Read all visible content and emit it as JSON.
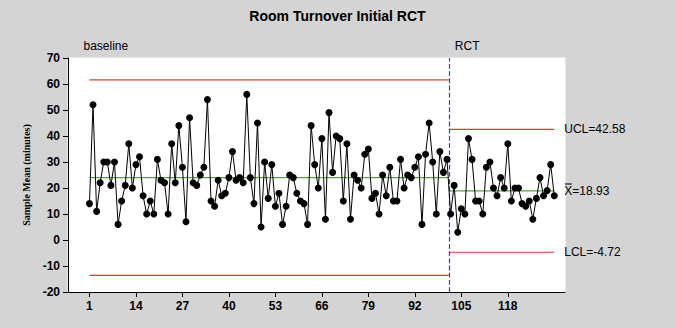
{
  "chart_data": {
    "type": "line",
    "title": "Room Turnover Initial RCT",
    "ylabel": "Sample Mean (minutes)",
    "x": [
      1,
      2,
      3,
      4,
      5,
      6,
      7,
      8,
      9,
      10,
      11,
      12,
      13,
      14,
      15,
      16,
      17,
      18,
      19,
      20,
      21,
      22,
      23,
      24,
      25,
      26,
      27,
      28,
      29,
      30,
      31,
      32,
      33,
      34,
      35,
      36,
      37,
      38,
      39,
      40,
      41,
      42,
      43,
      44,
      45,
      46,
      47,
      48,
      49,
      50,
      51,
      52,
      53,
      54,
      55,
      56,
      57,
      58,
      59,
      60,
      61,
      62,
      63,
      64,
      65,
      66,
      67,
      68,
      69,
      70,
      71,
      72,
      73,
      74,
      75,
      76,
      77,
      78,
      79,
      80,
      81,
      82,
      83,
      84,
      85,
      86,
      87,
      88,
      89,
      90,
      91,
      92,
      93,
      94,
      95,
      96,
      97,
      98,
      99,
      100,
      101,
      102,
      103,
      104,
      105,
      106,
      107,
      108,
      109,
      110,
      111,
      112,
      113,
      114,
      115,
      116,
      117,
      118,
      119,
      120,
      121,
      122,
      123,
      124,
      125,
      126,
      127,
      128,
      129,
      130,
      131
    ],
    "values": [
      14,
      52,
      11,
      22,
      30,
      30,
      21,
      30,
      6,
      15,
      21,
      37,
      20,
      29,
      32,
      17,
      10,
      15,
      10,
      31,
      23,
      22,
      10,
      37,
      22,
      44,
      28,
      7,
      47,
      22,
      21,
      25,
      28,
      54,
      15,
      13,
      23,
      17,
      18,
      24,
      34,
      23,
      24,
      22,
      56,
      24,
      14,
      45,
      5,
      30,
      16,
      29,
      13,
      18,
      6,
      13,
      25,
      24,
      18,
      15,
      14,
      6,
      44,
      29,
      20,
      39,
      8,
      49,
      26,
      40,
      39,
      15,
      37,
      8,
      25,
      23,
      20,
      33,
      35,
      16,
      18,
      10,
      25,
      17,
      28,
      15,
      15,
      31,
      20,
      25,
      24,
      28,
      32,
      6,
      33,
      45,
      30,
      10,
      34,
      26,
      31,
      10,
      21,
      3,
      12,
      10,
      39,
      31,
      15,
      15,
      10,
      28,
      30,
      20,
      17,
      24,
      20,
      37,
      15,
      20,
      20,
      14,
      13,
      15,
      8,
      16,
      24,
      17,
      19,
      29,
      17
    ],
    "color": "#000000",
    "marker": "circle",
    "boundary": 101.5,
    "phases": [
      {
        "label": "baseline",
        "start": 1,
        "end": 101.5,
        "ucl": 61.6,
        "center": 24.0,
        "lcl": -13.6
      },
      {
        "label": "RCT",
        "start": 101.5,
        "end": 131,
        "ucl": 42.58,
        "center": 18.93,
        "lcl": -4.72,
        "ucl_label": "UCL=42.58",
        "center_label": "X̿=18.93",
        "lcl_label": "LCL=-4.72"
      }
    ],
    "xlim": [
      -5,
      134
    ],
    "xticks": [
      1,
      14,
      27,
      40,
      53,
      66,
      79,
      92,
      105,
      118
    ],
    "ylim": [
      -20,
      70
    ],
    "yticks": [
      -20,
      -10,
      0,
      10,
      20,
      30,
      40,
      50,
      60,
      70
    ],
    "grid": false
  }
}
